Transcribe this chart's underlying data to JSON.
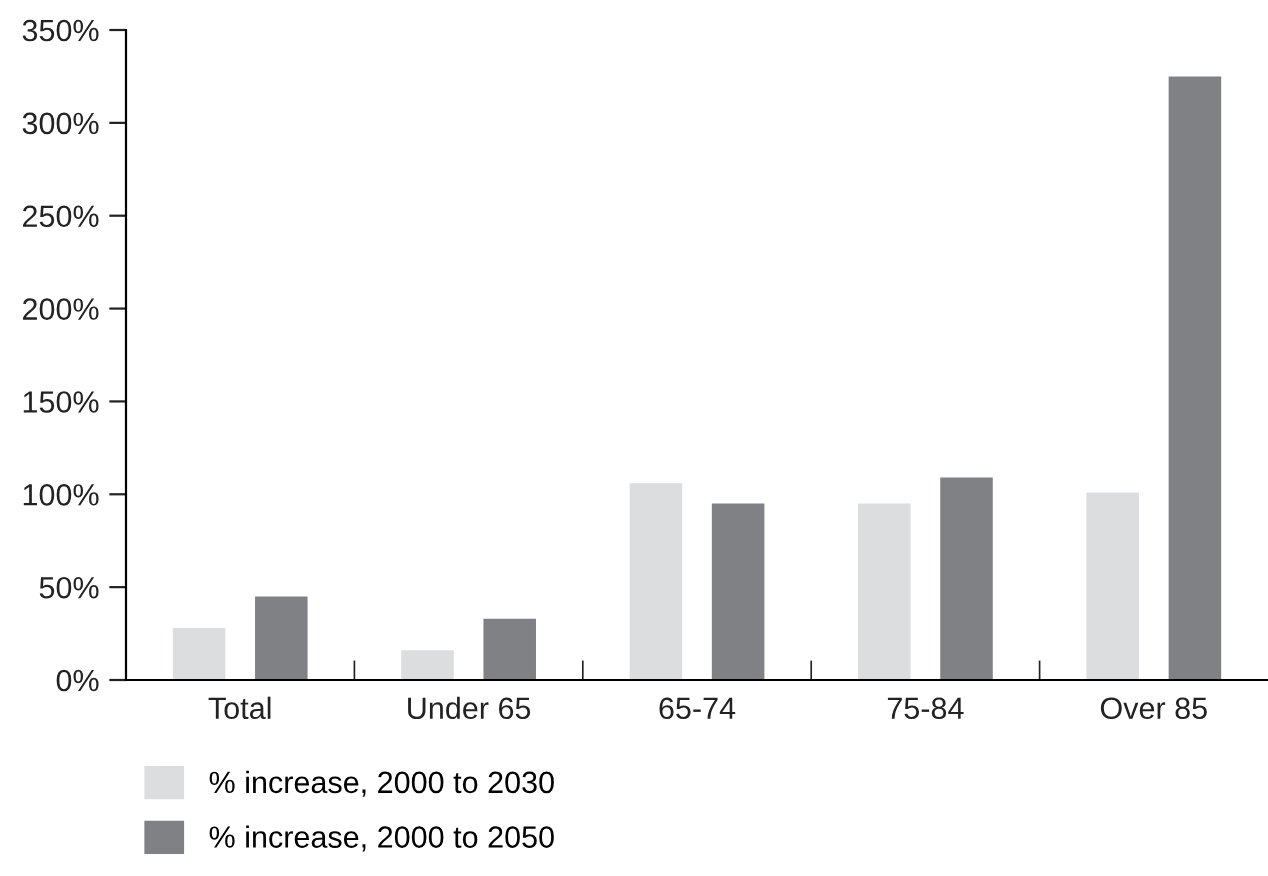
{
  "chart_data": {
    "type": "bar",
    "categories": [
      "Total",
      "Under 65",
      "65-74",
      "75-84",
      "Over 85"
    ],
    "series": [
      {
        "name": "% increase, 2000 to 2030",
        "color": "#dcdddf",
        "values": [
          28,
          16,
          106,
          95,
          101
        ]
      },
      {
        "name": "% increase, 2000 to 2050",
        "color": "#808184",
        "values": [
          45,
          33,
          95,
          109,
          325
        ]
      }
    ],
    "ylim": [
      0,
      350
    ],
    "yticks": [
      {
        "value": 0,
        "label": "0%"
      },
      {
        "value": 50,
        "label": "50%"
      },
      {
        "value": 100,
        "label": "100%"
      },
      {
        "value": 150,
        "label": "150%"
      },
      {
        "value": 200,
        "label": "200%"
      },
      {
        "value": 250,
        "label": "250%"
      },
      {
        "value": 300,
        "label": "300%"
      },
      {
        "value": 350,
        "label": "350%"
      }
    ],
    "grid": false,
    "legend": "bottom left"
  }
}
